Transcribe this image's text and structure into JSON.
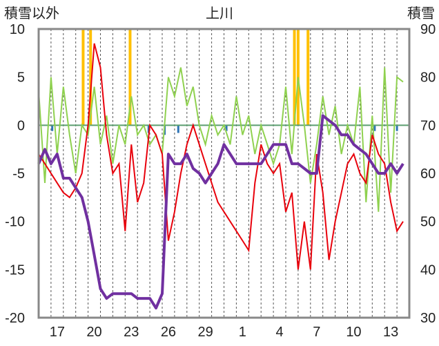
{
  "chart_data": {
    "type": "line",
    "title": "上川",
    "ylabel_left": "積雪以外",
    "ylabel_right": "積雪",
    "ylim_left": [
      -20,
      10
    ],
    "ylim_right": [
      30,
      90
    ],
    "yticks_left": [
      "10",
      "5",
      "0",
      "-5",
      "-10",
      "-15",
      "-20"
    ],
    "yticks_right": [
      "90",
      "80",
      "70",
      "60",
      "50",
      "40",
      "30"
    ],
    "xlim": [
      0,
      30
    ],
    "xticks": [
      {
        "x": 1.5,
        "label": "17"
      },
      {
        "x": 4.5,
        "label": "20"
      },
      {
        "x": 7.5,
        "label": "23"
      },
      {
        "x": 10.5,
        "label": "26"
      },
      {
        "x": 13.5,
        "label": "29"
      },
      {
        "x": 16.5,
        "label": "1"
      },
      {
        "x": 19.5,
        "label": "4"
      },
      {
        "x": 22.5,
        "label": "7"
      },
      {
        "x": 25.5,
        "label": "10"
      },
      {
        "x": 28.5,
        "label": "13"
      }
    ],
    "grid": "vertical-dashed",
    "colors": {
      "temperature": "#e8000b",
      "humidity": "#8fd14f",
      "snow_depth": "#7030a0",
      "sunshine": "#ffc000",
      "precipitation": "#2e75b6",
      "zero_line": "#5a9e6f"
    },
    "series": [
      {
        "key": "humidity",
        "axis": "left",
        "values": [
          [
            0,
            3.5
          ],
          [
            0.5,
            -6
          ],
          [
            1,
            5
          ],
          [
            1.5,
            -3
          ],
          [
            2,
            4
          ],
          [
            2.5,
            -1
          ],
          [
            3,
            -5
          ],
          [
            3.5,
            0
          ],
          [
            4,
            -1
          ],
          [
            4.5,
            4
          ],
          [
            5,
            -2
          ],
          [
            5.5,
            1
          ],
          [
            6,
            -4
          ],
          [
            6.5,
            0
          ],
          [
            7,
            -2
          ],
          [
            7.5,
            3
          ],
          [
            8,
            -1
          ],
          [
            8.5,
            0
          ],
          [
            9,
            -2
          ],
          [
            9.5,
            -1
          ],
          [
            10,
            -3
          ],
          [
            10.5,
            5
          ],
          [
            11,
            3
          ],
          [
            11.5,
            6
          ],
          [
            12,
            2
          ],
          [
            12.5,
            4
          ],
          [
            13,
            0
          ],
          [
            13.5,
            -2
          ],
          [
            14,
            1
          ],
          [
            14.5,
            -1
          ],
          [
            15,
            0
          ],
          [
            15.5,
            -2
          ],
          [
            16,
            3
          ],
          [
            16.5,
            -1
          ],
          [
            17,
            1
          ],
          [
            17.5,
            -3
          ],
          [
            18,
            0
          ],
          [
            18.5,
            -2
          ],
          [
            19,
            -4
          ],
          [
            19.5,
            -2
          ],
          [
            20,
            4
          ],
          [
            20.5,
            -3
          ],
          [
            21,
            5
          ],
          [
            21.5,
            0
          ],
          [
            22,
            -6
          ],
          [
            22.5,
            -2
          ],
          [
            23,
            3
          ],
          [
            23.5,
            -1
          ],
          [
            24,
            2
          ],
          [
            24.5,
            -3
          ],
          [
            25,
            0
          ],
          [
            25.5,
            -2
          ],
          [
            26,
            4
          ],
          [
            26.5,
            -8
          ],
          [
            27,
            1
          ],
          [
            27.5,
            -9
          ],
          [
            28,
            6
          ],
          [
            28.5,
            -7
          ],
          [
            29,
            5
          ],
          [
            29.5,
            4.5
          ]
        ]
      },
      {
        "key": "temperature",
        "axis": "left",
        "values": [
          [
            0,
            -3
          ],
          [
            0.5,
            -4
          ],
          [
            1,
            -5
          ],
          [
            1.5,
            -6
          ],
          [
            2,
            -7
          ],
          [
            2.5,
            -7.5
          ],
          [
            3,
            -6.5
          ],
          [
            3.5,
            -5
          ],
          [
            4,
            0
          ],
          [
            4.5,
            8.5
          ],
          [
            5,
            6
          ],
          [
            5.5,
            -1
          ],
          [
            6,
            -5
          ],
          [
            6.5,
            -4
          ],
          [
            7,
            -11
          ],
          [
            7.5,
            -2
          ],
          [
            8,
            -8
          ],
          [
            8.5,
            -6
          ],
          [
            9,
            0
          ],
          [
            9.5,
            -1
          ],
          [
            10,
            -3
          ],
          [
            10.5,
            -12
          ],
          [
            11,
            -9
          ],
          [
            11.5,
            -5
          ],
          [
            12,
            -2
          ],
          [
            12.5,
            0
          ],
          [
            13,
            -2
          ],
          [
            13.5,
            -4
          ],
          [
            14,
            -6
          ],
          [
            14.5,
            -8
          ],
          [
            15,
            -9
          ],
          [
            15.5,
            -10
          ],
          [
            16,
            -11
          ],
          [
            16.5,
            -12
          ],
          [
            17,
            -13
          ],
          [
            17.5,
            -6
          ],
          [
            18,
            -2
          ],
          [
            18.5,
            -4
          ],
          [
            19,
            -5
          ],
          [
            19.5,
            -4
          ],
          [
            20,
            -9
          ],
          [
            20.5,
            -7
          ],
          [
            21,
            -15
          ],
          [
            21.5,
            -10
          ],
          [
            22,
            -15
          ],
          [
            22.5,
            -3
          ],
          [
            23,
            -7
          ],
          [
            23.5,
            -14
          ],
          [
            24,
            -10
          ],
          [
            24.5,
            -7
          ],
          [
            25,
            -4
          ],
          [
            25.5,
            -3
          ],
          [
            26,
            -5
          ],
          [
            26.5,
            -6
          ],
          [
            27,
            -1
          ],
          [
            27.5,
            -3
          ],
          [
            28,
            -4
          ],
          [
            28.5,
            -8
          ],
          [
            29,
            -11
          ],
          [
            29.5,
            -10
          ]
        ]
      },
      {
        "key": "snow_depth",
        "axis": "right",
        "values": [
          [
            0,
            62
          ],
          [
            0.5,
            65
          ],
          [
            1,
            62
          ],
          [
            1.5,
            64
          ],
          [
            2,
            59
          ],
          [
            2.5,
            59
          ],
          [
            3,
            57
          ],
          [
            3.5,
            55
          ],
          [
            4,
            50
          ],
          [
            4.5,
            43
          ],
          [
            5,
            36
          ],
          [
            5.5,
            34
          ],
          [
            6,
            35
          ],
          [
            6.5,
            35
          ],
          [
            7,
            35
          ],
          [
            7.5,
            35
          ],
          [
            8,
            34
          ],
          [
            8.5,
            34
          ],
          [
            9,
            34
          ],
          [
            9.5,
            32
          ],
          [
            10,
            35
          ],
          [
            10.5,
            64
          ],
          [
            11,
            62
          ],
          [
            11.5,
            62
          ],
          [
            12,
            64
          ],
          [
            12.5,
            61
          ],
          [
            13,
            60
          ],
          [
            13.5,
            58
          ],
          [
            14,
            60
          ],
          [
            14.5,
            62
          ],
          [
            15,
            66
          ],
          [
            15.5,
            64
          ],
          [
            16,
            62
          ],
          [
            16.5,
            62
          ],
          [
            17,
            62
          ],
          [
            17.5,
            62
          ],
          [
            18,
            62
          ],
          [
            18.5,
            64
          ],
          [
            19,
            66
          ],
          [
            19.5,
            66
          ],
          [
            20,
            66
          ],
          [
            20.5,
            62
          ],
          [
            21,
            62
          ],
          [
            21.5,
            61
          ],
          [
            22,
            60
          ],
          [
            22.5,
            60
          ],
          [
            23,
            72
          ],
          [
            23.5,
            71
          ],
          [
            24,
            70
          ],
          [
            24.5,
            68
          ],
          [
            25,
            68
          ],
          [
            25.5,
            66
          ],
          [
            26,
            65
          ],
          [
            26.5,
            64
          ],
          [
            27,
            62
          ],
          [
            27.5,
            60
          ],
          [
            28,
            60
          ],
          [
            28.5,
            62
          ],
          [
            29,
            60
          ],
          [
            29.5,
            62
          ]
        ]
      },
      {
        "key": "sunshine",
        "axis": "left",
        "type": "bar",
        "values": [
          [
            3.6,
            10
          ],
          [
            4.2,
            10
          ],
          [
            7.4,
            10
          ],
          [
            20.7,
            10
          ],
          [
            21.0,
            10
          ],
          [
            21.8,
            10
          ]
        ]
      },
      {
        "key": "precipitation",
        "axis": "left",
        "type": "bar",
        "values": [
          [
            1.1,
            -0.6
          ],
          [
            8.9,
            -0.8
          ],
          [
            10.2,
            -1.0
          ],
          [
            11.3,
            -0.8
          ],
          [
            15.2,
            -0.6
          ],
          [
            27.2,
            -0.6
          ],
          [
            29.0,
            -0.6
          ]
        ]
      }
    ]
  }
}
